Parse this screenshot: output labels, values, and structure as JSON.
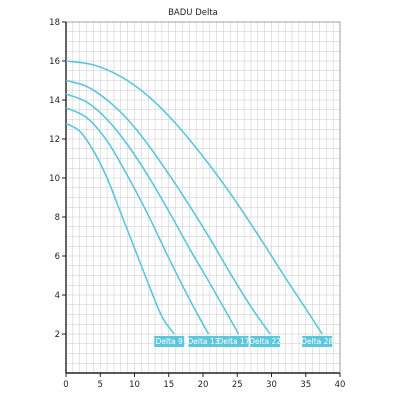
{
  "chart_data": {
    "type": "line",
    "title": "BADU Delta",
    "xlabel": "",
    "ylabel": "",
    "xlim": [
      0,
      40
    ],
    "ylim": [
      0,
      18
    ],
    "x_ticks": [
      0,
      5,
      10,
      15,
      20,
      25,
      30,
      35,
      40
    ],
    "y_ticks": [
      2,
      4,
      6,
      8,
      10,
      12,
      14,
      16,
      18
    ],
    "grid": true,
    "colors": {
      "series": "#5cc6dc",
      "label_bg": "#5cc6dc",
      "grid": "#c8c8c8",
      "axis": "#222222"
    },
    "series": [
      {
        "name": "Delta 9",
        "x": [
          0,
          2,
          4,
          6,
          8,
          10,
          12,
          14,
          15.8
        ],
        "y": [
          12.8,
          12.4,
          11.4,
          10.0,
          8.2,
          6.4,
          4.6,
          2.9,
          2.0
        ]
      },
      {
        "name": "Delta 13",
        "x": [
          0,
          3,
          6,
          9,
          12,
          15,
          18,
          20.8
        ],
        "y": [
          13.6,
          13.1,
          11.9,
          10.1,
          8.1,
          5.9,
          3.8,
          2.0
        ]
      },
      {
        "name": "Delta 17",
        "x": [
          0,
          3,
          6,
          9,
          12,
          15,
          18,
          21,
          25.2
        ],
        "y": [
          14.3,
          13.9,
          13.0,
          11.7,
          10.1,
          8.3,
          6.4,
          4.6,
          2.0
        ]
      },
      {
        "name": "Delta 22",
        "x": [
          0,
          3,
          6,
          9,
          12,
          15,
          18,
          21,
          24,
          27,
          29.8
        ],
        "y": [
          15.0,
          14.7,
          14.0,
          13.0,
          11.7,
          10.2,
          8.6,
          6.9,
          5.1,
          3.4,
          2.0
        ]
      },
      {
        "name": "Delta 28",
        "x": [
          0,
          4,
          8,
          12,
          16,
          20,
          24,
          28,
          32,
          35,
          37.4
        ],
        "y": [
          16.0,
          15.8,
          15.2,
          14.2,
          12.8,
          11.1,
          9.2,
          7.1,
          4.9,
          3.3,
          2.0
        ]
      }
    ]
  }
}
